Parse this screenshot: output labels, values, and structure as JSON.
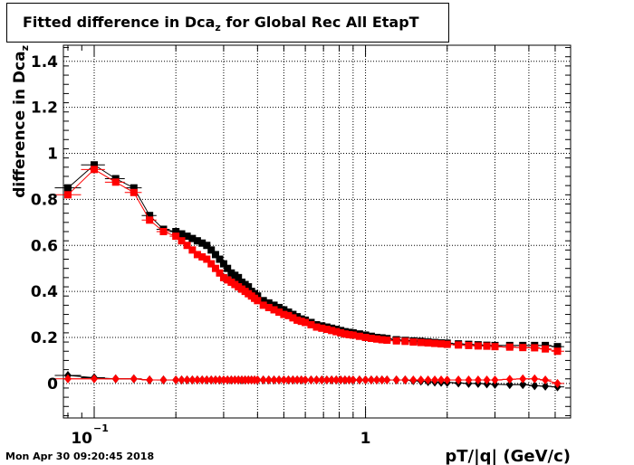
{
  "title": {
    "main": "Fitted difference in Dca",
    "sub": "z",
    "suffix": " for Global Rec All EtapT"
  },
  "timestamp": "Mon Apr 30 09:20:45 2018",
  "chart_data": {
    "type": "scatter",
    "xscale": "log",
    "xlim": [
      0.077,
      5.7
    ],
    "ylim": [
      -0.15,
      1.47
    ],
    "xlabel": "pT/|q| (GeV/c)",
    "ylabel": "difference in Dca",
    "ylabel_sub": "z",
    "xticks": [
      {
        "value": 0.1,
        "base": "10",
        "exp": "−1"
      },
      {
        "value": 1,
        "label": "1"
      }
    ],
    "yticks": [
      {
        "value": 0,
        "label": "0"
      },
      {
        "value": 0.2,
        "label": "0.2"
      },
      {
        "value": 0.4,
        "label": "0.4"
      },
      {
        "value": 0.6,
        "label": "0.6"
      },
      {
        "value": 0.8,
        "label": "0.8"
      },
      {
        "value": 1,
        "label": "1"
      },
      {
        "value": 1.2,
        "label": "1.2"
      },
      {
        "value": 1.4,
        "label": "1.4"
      }
    ],
    "grid": true,
    "x": [
      0.08,
      0.1,
      0.12,
      0.14,
      0.16,
      0.18,
      0.2,
      0.21,
      0.22,
      0.23,
      0.24,
      0.25,
      0.26,
      0.27,
      0.28,
      0.29,
      0.3,
      0.31,
      0.32,
      0.33,
      0.34,
      0.35,
      0.36,
      0.37,
      0.38,
      0.39,
      0.4,
      0.42,
      0.44,
      0.46,
      0.48,
      0.5,
      0.52,
      0.54,
      0.56,
      0.58,
      0.6,
      0.63,
      0.66,
      0.69,
      0.72,
      0.75,
      0.78,
      0.81,
      0.84,
      0.87,
      0.9,
      0.95,
      1.0,
      1.05,
      1.1,
      1.15,
      1.2,
      1.3,
      1.4,
      1.5,
      1.6,
      1.7,
      1.8,
      1.9,
      2.0,
      2.2,
      2.4,
      2.6,
      2.8,
      3.0,
      3.4,
      3.8,
      4.2,
      4.6,
      5.1
    ],
    "series": [
      {
        "color": "#000000",
        "marker": "square",
        "values": [
          0.85,
          0.95,
          0.89,
          0.85,
          0.73,
          0.67,
          0.66,
          0.65,
          0.64,
          0.63,
          0.62,
          0.61,
          0.6,
          0.58,
          0.56,
          0.54,
          0.52,
          0.5,
          0.48,
          0.47,
          0.46,
          0.44,
          0.43,
          0.42,
          0.4,
          0.39,
          0.38,
          0.36,
          0.35,
          0.34,
          0.33,
          0.32,
          0.31,
          0.3,
          0.29,
          0.28,
          0.275,
          0.265,
          0.255,
          0.25,
          0.245,
          0.24,
          0.235,
          0.23,
          0.225,
          0.222,
          0.22,
          0.215,
          0.21,
          0.205,
          0.2,
          0.198,
          0.195,
          0.19,
          0.187,
          0.185,
          0.183,
          0.18,
          0.178,
          0.176,
          0.175,
          0.172,
          0.17,
          0.168,
          0.166,
          0.165,
          0.165,
          0.165,
          0.165,
          0.165,
          0.16
        ]
      },
      {
        "color": "#ff0000",
        "marker": "square",
        "values": [
          0.82,
          0.93,
          0.875,
          0.83,
          0.71,
          0.66,
          0.64,
          0.62,
          0.6,
          0.58,
          0.56,
          0.55,
          0.54,
          0.52,
          0.5,
          0.48,
          0.46,
          0.45,
          0.44,
          0.43,
          0.42,
          0.41,
          0.4,
          0.39,
          0.38,
          0.37,
          0.36,
          0.34,
          0.33,
          0.32,
          0.31,
          0.3,
          0.295,
          0.285,
          0.275,
          0.27,
          0.265,
          0.255,
          0.245,
          0.24,
          0.235,
          0.23,
          0.225,
          0.22,
          0.215,
          0.212,
          0.21,
          0.205,
          0.2,
          0.196,
          0.193,
          0.19,
          0.188,
          0.185,
          0.183,
          0.18,
          0.178,
          0.176,
          0.174,
          0.172,
          0.17,
          0.167,
          0.165,
          0.163,
          0.162,
          0.16,
          0.158,
          0.156,
          0.155,
          0.15,
          0.14
        ]
      },
      {
        "color": "#000000",
        "marker": "diamond",
        "values": [
          0.035,
          0.025,
          0.02,
          0.02,
          0.015,
          0.015,
          0.015,
          0.015,
          0.015,
          0.015,
          0.015,
          0.015,
          0.015,
          0.015,
          0.015,
          0.015,
          0.015,
          0.015,
          0.015,
          0.015,
          0.015,
          0.015,
          0.015,
          0.015,
          0.015,
          0.015,
          0.015,
          0.015,
          0.015,
          0.015,
          0.015,
          0.015,
          0.015,
          0.015,
          0.015,
          0.015,
          0.015,
          0.015,
          0.015,
          0.015,
          0.015,
          0.015,
          0.015,
          0.015,
          0.015,
          0.015,
          0.015,
          0.015,
          0.015,
          0.015,
          0.015,
          0.015,
          0.015,
          0.015,
          0.015,
          0.012,
          0.01,
          0.008,
          0.006,
          0.005,
          0.004,
          0.002,
          0.0,
          0.0,
          -0.002,
          -0.004,
          -0.005,
          -0.005,
          -0.01,
          -0.012,
          -0.015
        ]
      },
      {
        "color": "#ff0000",
        "marker": "diamond",
        "values": [
          0.02,
          0.02,
          0.02,
          0.02,
          0.015,
          0.015,
          0.015,
          0.015,
          0.015,
          0.015,
          0.015,
          0.015,
          0.015,
          0.015,
          0.015,
          0.015,
          0.015,
          0.015,
          0.015,
          0.015,
          0.015,
          0.015,
          0.015,
          0.015,
          0.015,
          0.015,
          0.015,
          0.015,
          0.015,
          0.015,
          0.015,
          0.015,
          0.015,
          0.015,
          0.015,
          0.015,
          0.015,
          0.015,
          0.015,
          0.015,
          0.015,
          0.015,
          0.015,
          0.015,
          0.015,
          0.015,
          0.015,
          0.015,
          0.015,
          0.015,
          0.015,
          0.015,
          0.015,
          0.015,
          0.015,
          0.015,
          0.015,
          0.015,
          0.015,
          0.015,
          0.015,
          0.015,
          0.015,
          0.015,
          0.015,
          0.015,
          0.018,
          0.02,
          0.02,
          0.015,
          0.0
        ]
      }
    ]
  }
}
